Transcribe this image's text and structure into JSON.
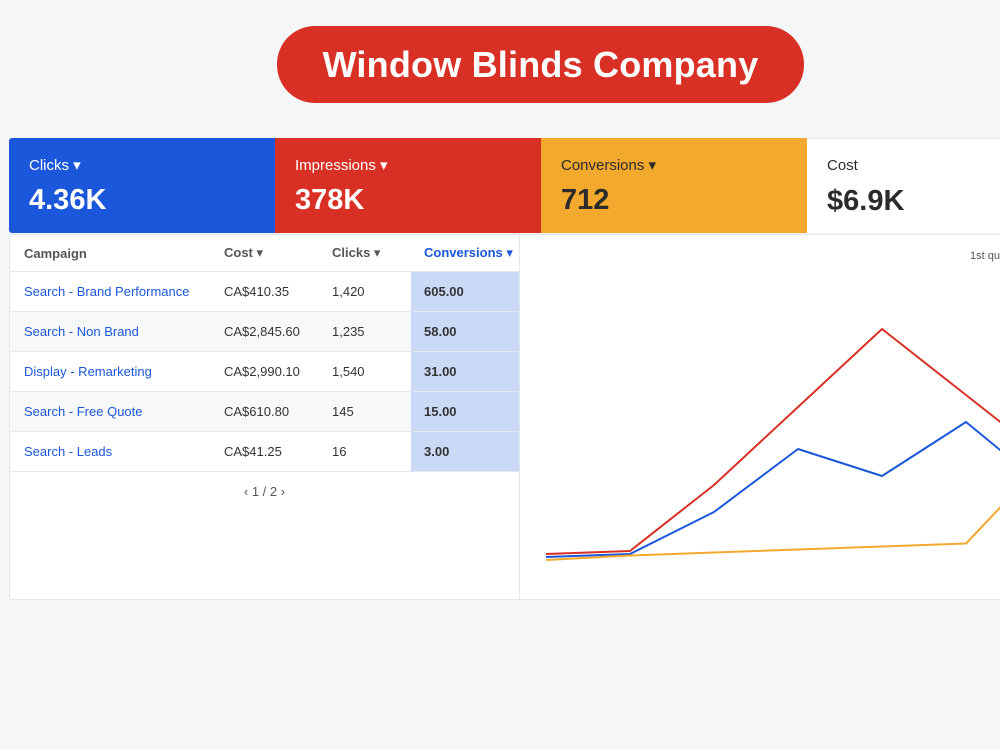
{
  "header": {
    "title": "Window Blinds Company"
  },
  "kpis": {
    "clicks": {
      "label": "Clicks ▾",
      "value": "4.36K"
    },
    "impressions": {
      "label": "Impressions ▾",
      "value": "378K"
    },
    "conversions": {
      "label": "Conversions ▾",
      "value": "712"
    },
    "cost": {
      "label": "Cost",
      "value": "$6.9K"
    }
  },
  "table": {
    "headers": {
      "campaign": "Campaign",
      "cost": "Cost ▾",
      "clicks": "Clicks ▾",
      "conversions": "Conversions ▾"
    },
    "rows": [
      {
        "campaign": "Search - Brand Performance",
        "cost": "CA$410.35",
        "clicks": "1,420",
        "conversions": "605.00"
      },
      {
        "campaign": "Search - Non Brand",
        "cost": "CA$2,845.60",
        "clicks": "1,235",
        "conversions": "58.00"
      },
      {
        "campaign": "Display - Remarketing",
        "cost": "CA$2,990.10",
        "clicks": "1,540",
        "conversions": "31.00"
      },
      {
        "campaign": "Search - Free Quote",
        "cost": "CA$610.80",
        "clicks": "145",
        "conversions": "15.00"
      },
      {
        "campaign": "Search - Leads",
        "cost": "CA$41.25",
        "clicks": "16",
        "conversions": "3.00"
      }
    ],
    "pagination": {
      "prev": "‹",
      "text": "1 / 2",
      "next": "›"
    }
  },
  "chart_data": {
    "type": "line",
    "title": "1st qu",
    "ylim": [
      0,
      100
    ],
    "series": [
      {
        "color": "#d93025",
        "values": [
          7,
          8,
          30,
          56,
          82,
          60,
          38
        ]
      },
      {
        "color": "#1b57db",
        "values": [
          6,
          7,
          21,
          42,
          33,
          51,
          28
        ]
      },
      {
        "color": "#f2a92e",
        "values": [
          5,
          6.5,
          7.5,
          8.5,
          9.5,
          10.5,
          40
        ]
      }
    ]
  },
  "colors": {
    "brand_red": "#d93025",
    "blue": "#1b57db",
    "orange": "#f2a92e"
  }
}
